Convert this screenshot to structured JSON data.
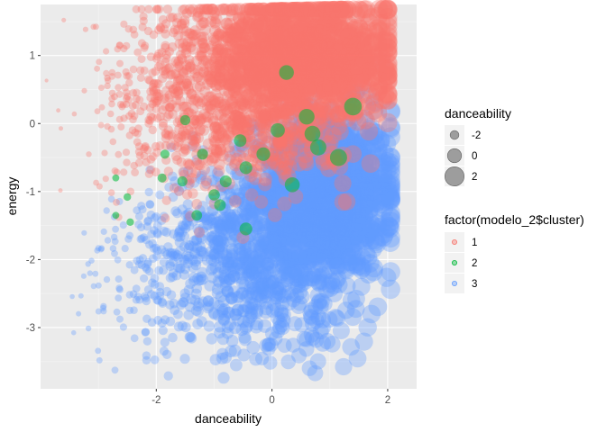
{
  "chart_data": {
    "type": "scatter",
    "xlabel": "danceability",
    "ylabel": "energy",
    "xlim": [
      -4.0,
      2.5
    ],
    "ylim": [
      -3.9,
      1.75
    ],
    "x_ticks": [
      -2,
      0,
      2
    ],
    "y_ticks": [
      1,
      0,
      -1,
      -2,
      -3
    ],
    "grid": true,
    "background": "#ebebeb",
    "point_alpha": 0.35,
    "size_legend": {
      "title": "danceability",
      "items": [
        {
          "label": "-2",
          "value": -2
        },
        {
          "label": "0",
          "value": 0
        },
        {
          "label": "2",
          "value": 2
        }
      ]
    },
    "color_legend": {
      "title": "factor(modelo_2$cluster)",
      "items": [
        {
          "label": "1",
          "color": "#f8766d"
        },
        {
          "label": "2",
          "color": "#00ba38"
        },
        {
          "label": "3",
          "color": "#619cff"
        }
      ]
    },
    "legend_position": "right",
    "series": [
      {
        "name": "1",
        "color": "#f8766d",
        "regions": [
          {
            "x_mean": 0.3,
            "x_sd": 0.85,
            "y_mean": 0.95,
            "y_sd": 0.45,
            "n": 1600
          },
          {
            "x_mean": -1.7,
            "x_sd": 0.75,
            "y_mean": 0.4,
            "y_sd": 0.7,
            "n": 420
          },
          {
            "x_mean": -0.3,
            "x_sd": 0.8,
            "y_mean": -0.2,
            "y_sd": 0.35,
            "n": 250
          }
        ]
      },
      {
        "name": "2",
        "color": "#00ba38",
        "points": [
          {
            "x": -2.5,
            "y": -1.08
          },
          {
            "x": -2.45,
            "y": -1.45
          },
          {
            "x": -1.85,
            "y": -0.45
          },
          {
            "x": -1.55,
            "y": -0.85
          },
          {
            "x": -1.5,
            "y": 0.05
          },
          {
            "x": -1.3,
            "y": -1.35
          },
          {
            "x": -1.2,
            "y": -0.45
          },
          {
            "x": -1.0,
            "y": -1.05
          },
          {
            "x": -0.8,
            "y": -0.85
          },
          {
            "x": -0.55,
            "y": -0.25
          },
          {
            "x": -0.45,
            "y": -0.65
          },
          {
            "x": -0.45,
            "y": -1.55
          },
          {
            "x": -0.15,
            "y": -0.45
          },
          {
            "x": 0.1,
            "y": -0.1
          },
          {
            "x": 0.25,
            "y": 0.75
          },
          {
            "x": 0.6,
            "y": 0.1
          },
          {
            "x": 0.7,
            "y": -0.15
          },
          {
            "x": 0.8,
            "y": -0.35
          },
          {
            "x": 1.15,
            "y": -0.5
          },
          {
            "x": 1.4,
            "y": 0.25
          },
          {
            "x": -1.9,
            "y": -0.8
          },
          {
            "x": -2.7,
            "y": -0.8
          },
          {
            "x": -2.7,
            "y": -1.35
          },
          {
            "x": -0.9,
            "y": -1.2
          },
          {
            "x": 0.35,
            "y": -0.9
          }
        ]
      },
      {
        "name": "3",
        "color": "#619cff",
        "regions": [
          {
            "x_mean": 0.9,
            "x_sd": 0.6,
            "y_mean": -1.0,
            "y_sd": 0.6,
            "n": 1300
          },
          {
            "x_mean": -0.4,
            "x_sd": 0.85,
            "y_mean": -1.7,
            "y_sd": 0.55,
            "n": 700
          },
          {
            "x_mean": -0.3,
            "x_sd": 1.0,
            "y_mean": -2.7,
            "y_sd": 0.45,
            "n": 230
          },
          {
            "x_mean": -2.4,
            "x_sd": 0.5,
            "y_mean": -2.1,
            "y_sd": 0.6,
            "n": 110
          }
        ]
      }
    ]
  }
}
